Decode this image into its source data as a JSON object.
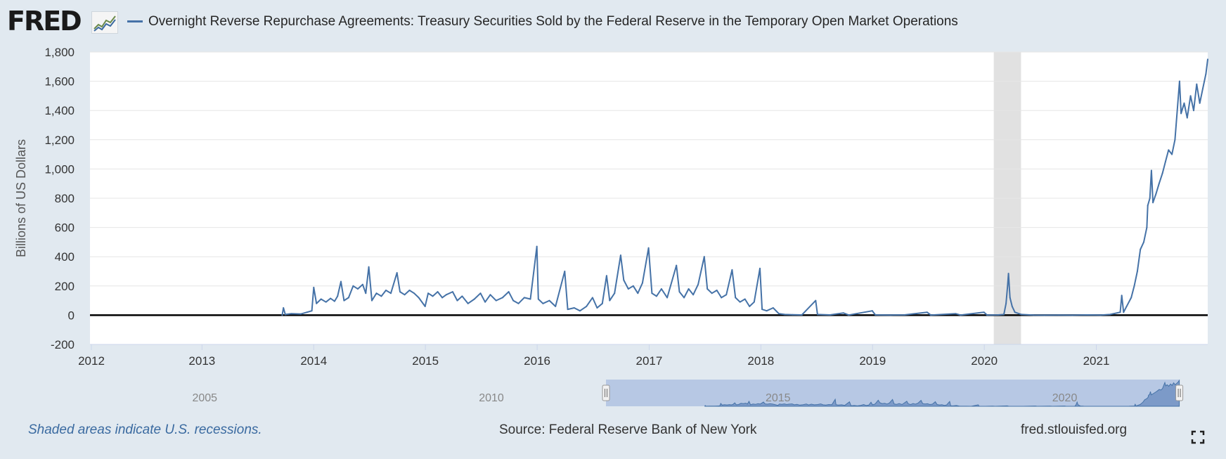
{
  "header": {
    "logo": "FRED",
    "logo_icon": "line-chart-icon",
    "series_title": "Overnight Reverse Repurchase Agreements: Treasury Securities Sold by the Federal Reserve in the Temporary Open Market Operations"
  },
  "footer": {
    "recession_note": "Shaded areas indicate U.S. recessions.",
    "source": "Source: Federal Reserve Bank of New York",
    "site": "fred.stlouisfed.org",
    "fullscreen_icon": "fullscreen-icon"
  },
  "colors": {
    "series": "#4572a7",
    "background": "#e1e9f0",
    "plot": "#ffffff",
    "recession": "#e1e1e1",
    "navigator_window": "#b7c8e4"
  },
  "chart_data": {
    "type": "line",
    "title": "Overnight Reverse Repurchase Agreements: Treasury Securities Sold by the Federal Reserve in the Temporary Open Market Operations",
    "xlabel": "",
    "ylabel": "Billions of US Dollars",
    "xlim": [
      "2012-01-01",
      "2021-12-31"
    ],
    "ylim": [
      -200,
      1800
    ],
    "x_ticks": [
      "2012",
      "2013",
      "2014",
      "2015",
      "2016",
      "2017",
      "2018",
      "2019",
      "2020",
      "2021"
    ],
    "y_ticks": [
      "-200",
      "0",
      "200",
      "400",
      "600",
      "800",
      "1,000",
      "1,200",
      "1,400",
      "1,600",
      "1,800"
    ],
    "grid": true,
    "legend": "top-left",
    "recessions": [
      {
        "start": "2020-02-01",
        "end": "2020-04-30"
      }
    ],
    "series": [
      {
        "name": "Overnight Reverse Repurchase Agreements: Treasury Securities Sold by the Federal Reserve in the Temporary Open Market Operations",
        "points": [
          [
            "2013-09-20",
            0
          ],
          [
            "2013-09-24",
            50
          ],
          [
            "2013-09-30",
            5
          ],
          [
            "2013-10-20",
            10
          ],
          [
            "2013-11-20",
            8
          ],
          [
            "2013-12-10",
            20
          ],
          [
            "2013-12-26",
            30
          ],
          [
            "2014-01-01",
            190
          ],
          [
            "2014-01-10",
            80
          ],
          [
            "2014-01-25",
            110
          ],
          [
            "2014-02-10",
            90
          ],
          [
            "2014-02-25",
            115
          ],
          [
            "2014-03-10",
            95
          ],
          [
            "2014-03-20",
            130
          ],
          [
            "2014-03-31",
            230
          ],
          [
            "2014-04-10",
            100
          ],
          [
            "2014-04-25",
            120
          ],
          [
            "2014-05-10",
            200
          ],
          [
            "2014-05-25",
            180
          ],
          [
            "2014-06-10",
            210
          ],
          [
            "2014-06-20",
            150
          ],
          [
            "2014-06-30",
            330
          ],
          [
            "2014-07-10",
            100
          ],
          [
            "2014-07-25",
            150
          ],
          [
            "2014-08-10",
            130
          ],
          [
            "2014-08-25",
            170
          ],
          [
            "2014-09-10",
            150
          ],
          [
            "2014-09-30",
            290
          ],
          [
            "2014-10-10",
            160
          ],
          [
            "2014-10-25",
            140
          ],
          [
            "2014-11-10",
            170
          ],
          [
            "2014-11-25",
            150
          ],
          [
            "2014-12-10",
            120
          ],
          [
            "2014-12-31",
            60
          ],
          [
            "2015-01-10",
            150
          ],
          [
            "2015-01-25",
            130
          ],
          [
            "2015-02-10",
            160
          ],
          [
            "2015-02-25",
            120
          ],
          [
            "2015-03-10",
            140
          ],
          [
            "2015-03-31",
            160
          ],
          [
            "2015-04-15",
            100
          ],
          [
            "2015-05-01",
            130
          ],
          [
            "2015-05-20",
            80
          ],
          [
            "2015-06-10",
            110
          ],
          [
            "2015-06-30",
            150
          ],
          [
            "2015-07-15",
            90
          ],
          [
            "2015-08-01",
            140
          ],
          [
            "2015-08-20",
            100
          ],
          [
            "2015-09-10",
            120
          ],
          [
            "2015-09-30",
            160
          ],
          [
            "2015-10-15",
            100
          ],
          [
            "2015-11-01",
            80
          ],
          [
            "2015-11-20",
            120
          ],
          [
            "2015-12-10",
            110
          ],
          [
            "2015-12-31",
            470
          ],
          [
            "2016-01-05",
            110
          ],
          [
            "2016-01-20",
            80
          ],
          [
            "2016-02-10",
            100
          ],
          [
            "2016-03-01",
            60
          ],
          [
            "2016-03-31",
            300
          ],
          [
            "2016-04-10",
            40
          ],
          [
            "2016-05-01",
            50
          ],
          [
            "2016-05-20",
            30
          ],
          [
            "2016-06-10",
            60
          ],
          [
            "2016-06-30",
            120
          ],
          [
            "2016-07-15",
            50
          ],
          [
            "2016-08-01",
            80
          ],
          [
            "2016-08-15",
            270
          ],
          [
            "2016-08-25",
            100
          ],
          [
            "2016-09-10",
            150
          ],
          [
            "2016-09-30",
            410
          ],
          [
            "2016-10-10",
            240
          ],
          [
            "2016-10-25",
            180
          ],
          [
            "2016-11-10",
            200
          ],
          [
            "2016-11-25",
            150
          ],
          [
            "2016-12-10",
            220
          ],
          [
            "2016-12-30",
            460
          ],
          [
            "2017-01-10",
            150
          ],
          [
            "2017-01-25",
            130
          ],
          [
            "2017-02-10",
            180
          ],
          [
            "2017-03-01",
            120
          ],
          [
            "2017-03-31",
            340
          ],
          [
            "2017-04-10",
            160
          ],
          [
            "2017-04-25",
            120
          ],
          [
            "2017-05-10",
            180
          ],
          [
            "2017-05-25",
            140
          ],
          [
            "2017-06-10",
            210
          ],
          [
            "2017-06-30",
            400
          ],
          [
            "2017-07-10",
            180
          ],
          [
            "2017-07-25",
            150
          ],
          [
            "2017-08-10",
            170
          ],
          [
            "2017-08-25",
            120
          ],
          [
            "2017-09-10",
            140
          ],
          [
            "2017-09-29",
            310
          ],
          [
            "2017-10-10",
            120
          ],
          [
            "2017-10-25",
            90
          ],
          [
            "2017-11-10",
            110
          ],
          [
            "2017-11-25",
            60
          ],
          [
            "2017-12-10",
            90
          ],
          [
            "2017-12-29",
            320
          ],
          [
            "2018-01-05",
            40
          ],
          [
            "2018-01-20",
            30
          ],
          [
            "2018-02-10",
            50
          ],
          [
            "2018-03-01",
            10
          ],
          [
            "2018-03-20",
            5
          ],
          [
            "2018-04-15",
            3
          ],
          [
            "2018-05-15",
            2
          ],
          [
            "2018-06-29",
            100
          ],
          [
            "2018-07-05",
            5
          ],
          [
            "2018-08-15",
            2
          ],
          [
            "2018-09-28",
            15
          ],
          [
            "2018-10-15",
            1
          ],
          [
            "2018-12-31",
            30
          ],
          [
            "2019-01-10",
            2
          ],
          [
            "2019-03-01",
            1
          ],
          [
            "2019-04-15",
            2
          ],
          [
            "2019-06-28",
            20
          ],
          [
            "2019-07-10",
            1
          ],
          [
            "2019-09-30",
            10
          ],
          [
            "2019-10-15",
            1
          ],
          [
            "2019-12-31",
            20
          ],
          [
            "2020-01-10",
            1
          ],
          [
            "2020-02-15",
            2
          ],
          [
            "2020-03-05",
            5
          ],
          [
            "2020-03-12",
            80
          ],
          [
            "2020-03-17",
            200
          ],
          [
            "2020-03-20",
            285
          ],
          [
            "2020-03-25",
            120
          ],
          [
            "2020-04-01",
            60
          ],
          [
            "2020-04-10",
            20
          ],
          [
            "2020-05-01",
            5
          ],
          [
            "2020-06-10",
            1
          ],
          [
            "2020-07-15",
            0
          ],
          [
            "2020-09-01",
            1
          ],
          [
            "2020-10-15",
            0
          ],
          [
            "2020-12-01",
            2
          ],
          [
            "2021-01-15",
            1
          ],
          [
            "2021-02-15",
            5
          ],
          [
            "2021-03-20",
            20
          ],
          [
            "2021-03-25",
            135
          ],
          [
            "2021-03-31",
            20
          ],
          [
            "2021-04-10",
            60
          ],
          [
            "2021-04-25",
            120
          ],
          [
            "2021-05-05",
            200
          ],
          [
            "2021-05-15",
            300
          ],
          [
            "2021-05-25",
            450
          ],
          [
            "2021-06-05",
            500
          ],
          [
            "2021-06-15",
            600
          ],
          [
            "2021-06-18",
            750
          ],
          [
            "2021-06-25",
            800
          ],
          [
            "2021-06-30",
            990
          ],
          [
            "2021-07-05",
            770
          ],
          [
            "2021-07-15",
            830
          ],
          [
            "2021-07-25",
            900
          ],
          [
            "2021-08-05",
            970
          ],
          [
            "2021-08-15",
            1050
          ],
          [
            "2021-08-25",
            1130
          ],
          [
            "2021-09-05",
            1100
          ],
          [
            "2021-09-15",
            1200
          ],
          [
            "2021-09-30",
            1600
          ],
          [
            "2021-10-05",
            1380
          ],
          [
            "2021-10-15",
            1450
          ],
          [
            "2021-10-25",
            1350
          ],
          [
            "2021-11-05",
            1500
          ],
          [
            "2021-11-15",
            1400
          ],
          [
            "2021-11-25",
            1580
          ],
          [
            "2021-12-05",
            1450
          ],
          [
            "2021-12-15",
            1550
          ],
          [
            "2021-12-25",
            1650
          ],
          [
            "2021-12-31",
            1750
          ]
        ]
      }
    ],
    "navigator": {
      "labels": [
        "2005",
        "2010",
        "2015",
        "2020"
      ],
      "range": [
        "2003-01-01",
        "2022-06-30"
      ],
      "window": [
        "2012-01-01",
        "2021-12-31"
      ]
    }
  }
}
